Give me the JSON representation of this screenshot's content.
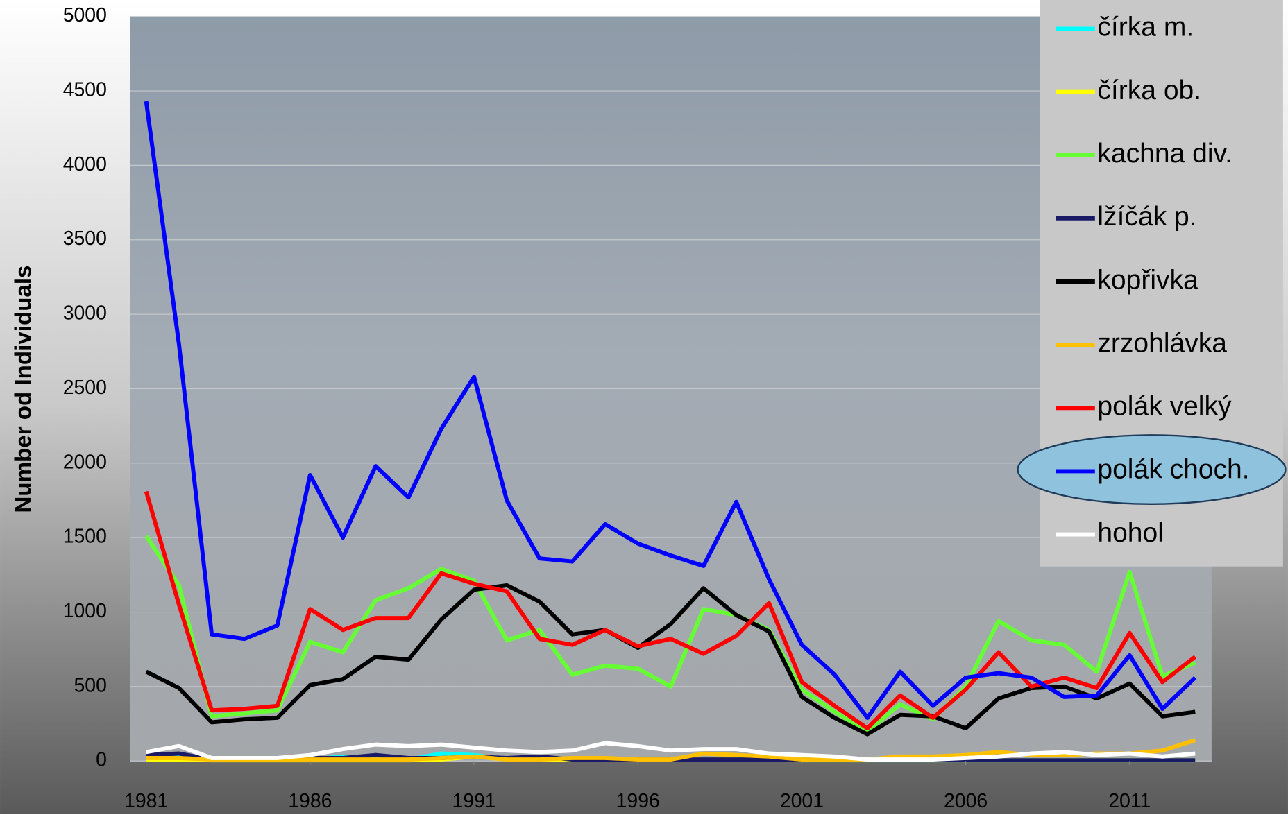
{
  "chart_data": {
    "type": "line",
    "y_label": "Number od Individuals",
    "x": [
      1981,
      1982,
      1983,
      1984,
      1985,
      1986,
      1987,
      1988,
      1989,
      1990,
      1991,
      1992,
      1993,
      1994,
      1995,
      1996,
      1997,
      1998,
      1999,
      2000,
      2001,
      2002,
      2003,
      2004,
      2005,
      2006,
      2007,
      2008,
      2009,
      2010,
      2011,
      2012,
      2013
    ],
    "xlim": [
      1980.5,
      2013.5
    ],
    "xticks": [
      1981,
      1986,
      1991,
      1996,
      2001,
      2006,
      2011
    ],
    "ylim": [
      0,
      5000
    ],
    "yticks": [
      0,
      500,
      1000,
      1500,
      2000,
      2500,
      3000,
      3500,
      4000,
      4500,
      5000
    ],
    "grid": true,
    "legend": "right",
    "series": [
      {
        "name": "čírka m.",
        "color": "#00ffff",
        "values": [
          30,
          40,
          10,
          10,
          10,
          10,
          30,
          10,
          10,
          50,
          40,
          10,
          10,
          10,
          10,
          10,
          10,
          10,
          10,
          10,
          5,
          5,
          5,
          5,
          5,
          5,
          5,
          5,
          5,
          5,
          5,
          5,
          5
        ]
      },
      {
        "name": "čírka ob.",
        "color": "#ffff00",
        "values": [
          10,
          10,
          5,
          5,
          5,
          5,
          5,
          5,
          5,
          10,
          30,
          10,
          10,
          10,
          10,
          10,
          10,
          10,
          10,
          10,
          5,
          5,
          5,
          5,
          5,
          5,
          5,
          5,
          5,
          5,
          5,
          5,
          5
        ]
      },
      {
        "name": "kachna div.",
        "color": "#66ff33",
        "values": [
          1510,
          1180,
          300,
          320,
          340,
          800,
          730,
          1080,
          1160,
          1290,
          1210,
          810,
          880,
          580,
          640,
          620,
          500,
          1020,
          980,
          880,
          480,
          330,
          200,
          380,
          280,
          500,
          940,
          810,
          780,
          600,
          1270,
          570,
          660
        ]
      },
      {
        "name": "lžíčák p.",
        "color": "#1a1a66",
        "values": [
          40,
          50,
          10,
          10,
          10,
          20,
          20,
          40,
          20,
          20,
          30,
          20,
          30,
          10,
          10,
          10,
          10,
          10,
          10,
          10,
          5,
          5,
          5,
          5,
          5,
          5,
          5,
          5,
          5,
          5,
          5,
          5,
          5
        ]
      },
      {
        "name": "kopřivka",
        "color": "#000000",
        "values": [
          600,
          490,
          260,
          280,
          290,
          510,
          550,
          700,
          680,
          950,
          1150,
          1180,
          1070,
          850,
          880,
          760,
          920,
          1160,
          980,
          870,
          430,
          290,
          180,
          310,
          300,
          220,
          420,
          490,
          500,
          420,
          520,
          300,
          330
        ]
      },
      {
        "name": "zrzohlávka",
        "color": "#ffc000",
        "values": [
          20,
          20,
          10,
          10,
          10,
          10,
          10,
          10,
          10,
          20,
          30,
          10,
          10,
          20,
          20,
          10,
          10,
          50,
          40,
          30,
          10,
          10,
          10,
          30,
          30,
          40,
          60,
          40,
          40,
          50,
          50,
          70,
          140
        ]
      },
      {
        "name": "polák velký",
        "color": "#ff0000",
        "values": [
          1810,
          1050,
          340,
          350,
          370,
          1020,
          880,
          960,
          960,
          1260,
          1190,
          1140,
          820,
          780,
          880,
          770,
          820,
          720,
          840,
          1060,
          530,
          370,
          220,
          440,
          290,
          480,
          730,
          500,
          560,
          490,
          860,
          530,
          700
        ]
      },
      {
        "name": "polák choch.",
        "color": "#0000ff",
        "values": [
          4430,
          2800,
          850,
          820,
          910,
          1920,
          1500,
          1980,
          1770,
          2230,
          2580,
          1750,
          1360,
          1340,
          1590,
          1460,
          1380,
          1310,
          1740,
          1220,
          780,
          580,
          290,
          600,
          370,
          560,
          590,
          560,
          430,
          440,
          710,
          350,
          560
        ]
      },
      {
        "name": "hohol",
        "color": "#ffffff",
        "values": [
          60,
          100,
          20,
          20,
          20,
          40,
          80,
          110,
          100,
          110,
          90,
          70,
          60,
          70,
          120,
          100,
          70,
          80,
          80,
          50,
          40,
          30,
          10,
          10,
          10,
          20,
          30,
          50,
          60,
          40,
          50,
          30,
          50
        ]
      }
    ]
  }
}
